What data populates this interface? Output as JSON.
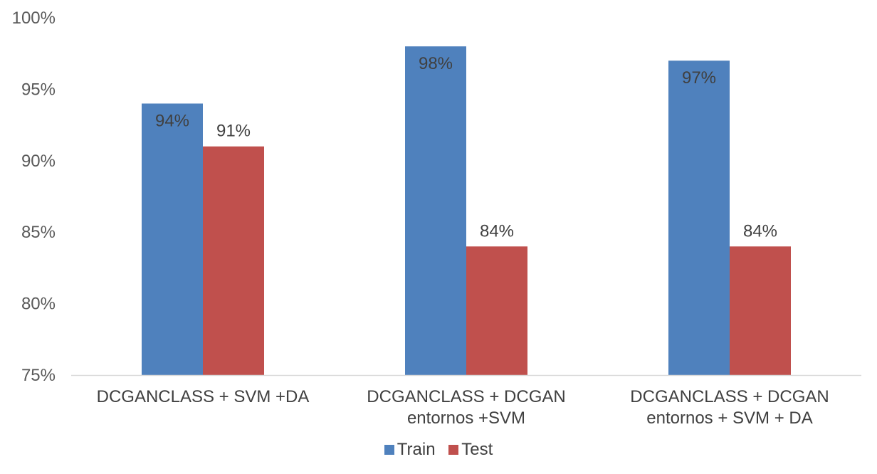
{
  "chart_data": {
    "type": "bar",
    "categories": [
      [
        "DCGANCLASS + SVM +DA"
      ],
      [
        "DCGANCLASS + DCGAN",
        "entornos +SVM"
      ],
      [
        "DCGANCLASS + DCGAN",
        "entornos + SVM + DA"
      ]
    ],
    "series": [
      {
        "name": "Train",
        "color": "#4f81bd",
        "values": [
          94,
          98,
          97
        ],
        "labels": [
          "94%",
          "98%",
          "97%"
        ],
        "label_position": "inside_end"
      },
      {
        "name": "Test",
        "color": "#c0504d",
        "values": [
          91,
          84,
          84
        ],
        "labels": [
          "91%",
          "84%",
          "84%"
        ],
        "label_position": "outside_end"
      }
    ],
    "ylim": [
      75,
      100
    ],
    "yticks": [
      75,
      80,
      85,
      90,
      95,
      100
    ],
    "ytick_labels": [
      "75%",
      "80%",
      "85%",
      "90%",
      "95%",
      "100%"
    ],
    "grid": false,
    "legend_position": "bottom"
  }
}
